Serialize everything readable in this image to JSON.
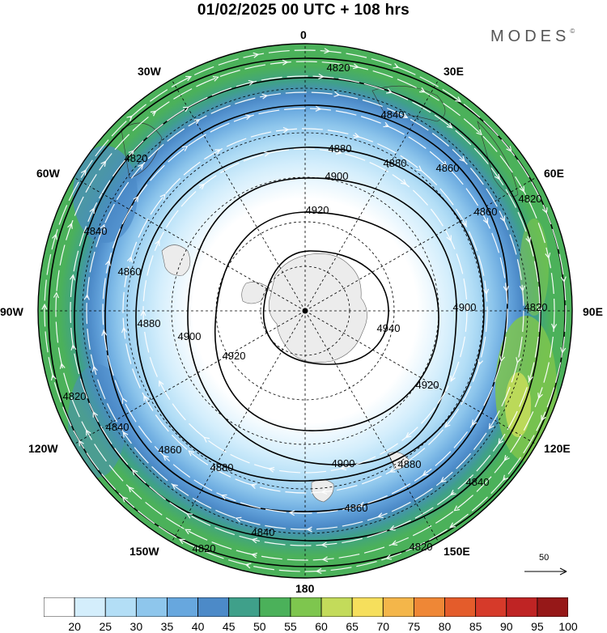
{
  "title": "01/02/2025  00 UTC  + 108 hrs",
  "brand": "MODES",
  "brand_mark": "©",
  "longitude_labels": [
    "0",
    "30E",
    "60E",
    "90E",
    "120E",
    "150E",
    "180",
    "150W",
    "120W",
    "90W",
    "60W",
    "30W"
  ],
  "contour_levels": [
    {
      "value": "4820",
      "level": 4820
    },
    {
      "value": "4840",
      "level": 4840
    },
    {
      "value": "4860",
      "level": 4860
    },
    {
      "value": "4880",
      "level": 4880
    },
    {
      "value": "4900",
      "level": 4900
    },
    {
      "value": "4920",
      "level": 4920
    },
    {
      "value": "4940",
      "level": 4940
    }
  ],
  "wind_reference_vector": "50",
  "colorbar": {
    "ticks": [
      "20",
      "25",
      "30",
      "35",
      "40",
      "45",
      "50",
      "55",
      "60",
      "65",
      "70",
      "75",
      "80",
      "85",
      "90",
      "95",
      "100"
    ],
    "colors": [
      "#ffffff",
      "#d4eefc",
      "#b3def6",
      "#8ec6ec",
      "#67a7de",
      "#4c8ac8",
      "#3fa08a",
      "#4bb15a",
      "#7ec64e",
      "#c3db5a",
      "#f6df5c",
      "#f4b64a",
      "#ef8736",
      "#e45c2b",
      "#d63a2a",
      "#bf2424",
      "#961818"
    ]
  },
  "map_colors": {
    "ocean_outer": "#4bb15a",
    "land": "#ececec",
    "contour": "#000000"
  }
}
